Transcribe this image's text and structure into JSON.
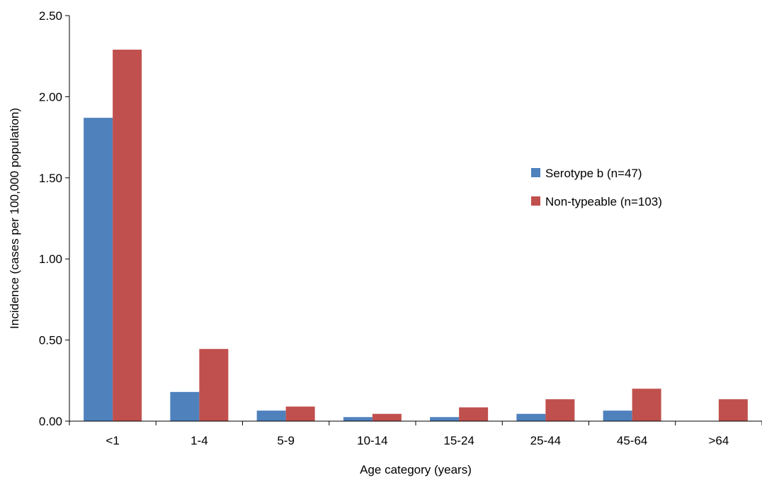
{
  "chart_data": {
    "type": "bar",
    "xlabel": "Age category (years)",
    "ylabel": "Incidence (cases per 100,000 population)",
    "ylim": [
      0,
      2.5
    ],
    "yticks": [
      "0.00",
      "0.50",
      "1.00",
      "1.50",
      "2.00",
      "2.50"
    ],
    "categories": [
      "<1",
      "1-4",
      "5-9",
      "10-14",
      "15-24",
      "25-44",
      "45-64",
      ">64"
    ],
    "series": [
      {
        "name": "Serotype b (n=47)",
        "color": "#4F81BD",
        "values": [
          1.87,
          0.18,
          0.065,
          0.025,
          0.025,
          0.045,
          0.065,
          0.0
        ]
      },
      {
        "name": "Non-typeable (n=103)",
        "color": "#C0504D",
        "values": [
          2.29,
          0.445,
          0.09,
          0.045,
          0.085,
          0.135,
          0.2,
          0.135
        ]
      }
    ],
    "grid": false,
    "legend_position": "right"
  }
}
